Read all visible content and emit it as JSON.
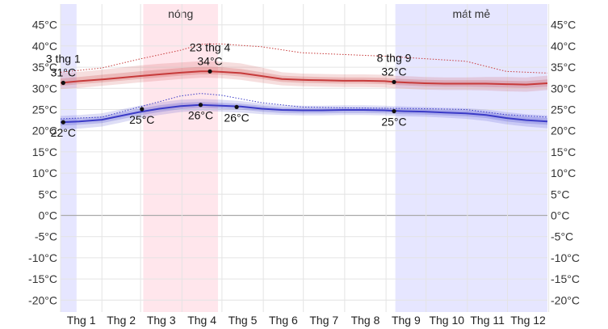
{
  "chart_data": {
    "type": "line",
    "y_unit": "°C",
    "ylim": [
      -22,
      46
    ],
    "yticks": [
      -20,
      -15,
      -10,
      -5,
      0,
      5,
      10,
      15,
      20,
      25,
      30,
      35,
      40,
      45
    ],
    "ytick_labels": [
      "-20°C",
      "-15°C",
      "-10°C",
      "-5°C",
      "0°C",
      "5°C",
      "10°C",
      "15°C",
      "20°C",
      "25°C",
      "30°C",
      "35°C",
      "40°C",
      "45°C"
    ],
    "categories": [
      "Thg 1",
      "Thg 2",
      "Thg 3",
      "Thg 4",
      "Thg 5",
      "Thg 6",
      "Thg 7",
      "Thg 8",
      "Thg 9",
      "Thg 10",
      "Thg 11",
      "Thg 12"
    ],
    "grid": true,
    "x_day_range": [
      1,
      366
    ],
    "seasons": [
      {
        "label": "",
        "start_date": "1 thg 1",
        "end_date": "12 thg 1",
        "color": "#e6e6ff"
      },
      {
        "label": "nóng",
        "start_date": "3 thg 3",
        "end_date": "27 thg 4",
        "color": "#ffe6ec"
      },
      {
        "label": "mát mẻ",
        "start_date": "8 thg 9",
        "end_date": "31 thg 12",
        "color": "#e6e6ff"
      }
    ],
    "series": [
      {
        "role": "high",
        "color": "#c73b3b",
        "x": [
          1,
          15,
          32,
          46,
          60,
          75,
          91,
          106,
          113,
          121,
          136,
          152,
          167,
          182,
          197,
          213,
          228,
          244,
          251,
          259,
          274,
          289,
          305,
          320,
          335,
          350,
          366
        ],
        "values": [
          31.3,
          31.7,
          32.1,
          32.5,
          32.9,
          33.3,
          33.7,
          34.0,
          34.0,
          33.9,
          33.6,
          32.9,
          32.2,
          32.0,
          31.9,
          31.8,
          31.8,
          31.7,
          31.5,
          31.4,
          31.2,
          31.1,
          31.1,
          31.1,
          31.0,
          30.9,
          31.2
        ],
        "p10_90": [
          [
            29.8,
            33.6
          ],
          [
            30.1,
            33.9
          ],
          [
            30.6,
            34.4
          ],
          [
            31.0,
            34.9
          ],
          [
            31.4,
            35.4
          ],
          [
            31.8,
            35.8
          ],
          [
            32.2,
            36.1
          ],
          [
            32.5,
            36.4
          ],
          [
            32.5,
            36.4
          ],
          [
            32.4,
            36.3
          ],
          [
            32.0,
            35.9
          ],
          [
            31.3,
            34.9
          ],
          [
            30.7,
            33.8
          ],
          [
            30.5,
            33.5
          ],
          [
            30.4,
            33.4
          ],
          [
            30.3,
            33.3
          ],
          [
            30.3,
            33.3
          ],
          [
            30.2,
            33.2
          ],
          [
            30.0,
            33.0
          ],
          [
            29.9,
            32.9
          ],
          [
            29.7,
            32.7
          ],
          [
            29.6,
            32.6
          ],
          [
            29.6,
            32.6
          ],
          [
            29.5,
            32.7
          ],
          [
            29.3,
            32.7
          ],
          [
            29.2,
            32.6
          ],
          [
            29.6,
            33.0
          ]
        ],
        "p25_75": [
          [
            30.6,
            32.3
          ],
          [
            31.0,
            32.7
          ],
          [
            31.4,
            33.2
          ],
          [
            31.8,
            33.6
          ],
          [
            32.2,
            34.0
          ],
          [
            32.6,
            34.4
          ],
          [
            33.0,
            34.8
          ],
          [
            33.3,
            35.1
          ],
          [
            33.3,
            35.1
          ],
          [
            33.2,
            35.0
          ],
          [
            32.8,
            34.6
          ],
          [
            32.2,
            33.8
          ],
          [
            31.5,
            33.0
          ],
          [
            31.3,
            32.8
          ],
          [
            31.2,
            32.7
          ],
          [
            31.1,
            32.6
          ],
          [
            31.1,
            32.6
          ],
          [
            31.0,
            32.5
          ],
          [
            30.8,
            32.3
          ],
          [
            30.7,
            32.2
          ],
          [
            30.5,
            32.0
          ],
          [
            30.4,
            31.9
          ],
          [
            30.4,
            31.9
          ],
          [
            30.3,
            31.9
          ],
          [
            30.2,
            31.8
          ],
          [
            30.1,
            31.7
          ],
          [
            30.4,
            32.1
          ]
        ]
      },
      {
        "role": "low",
        "color": "#3b3bc7",
        "x": [
          1,
          15,
          32,
          46,
          60,
          75,
          91,
          106,
          113,
          121,
          136,
          152,
          167,
          182,
          197,
          213,
          228,
          244,
          251,
          259,
          274,
          289,
          305,
          320,
          335,
          350,
          366
        ],
        "values": [
          22.0,
          22.2,
          22.6,
          23.5,
          24.4,
          25.2,
          25.8,
          26.1,
          26.0,
          25.9,
          25.7,
          25.2,
          24.9,
          24.8,
          24.8,
          24.9,
          24.9,
          24.8,
          24.7,
          24.6,
          24.5,
          24.3,
          24.1,
          23.7,
          23.0,
          22.5,
          22.2
        ],
        "p10_90": [
          [
            20.3,
            23.5
          ],
          [
            20.5,
            23.7
          ],
          [
            21.0,
            24.1
          ],
          [
            21.9,
            25.0
          ],
          [
            22.9,
            25.9
          ],
          [
            23.7,
            26.7
          ],
          [
            24.4,
            27.3
          ],
          [
            24.7,
            27.5
          ],
          [
            24.6,
            27.4
          ],
          [
            24.5,
            27.3
          ],
          [
            24.3,
            27.0
          ],
          [
            23.9,
            26.4
          ],
          [
            23.7,
            26.0
          ],
          [
            23.6,
            25.9
          ],
          [
            23.6,
            25.9
          ],
          [
            23.7,
            26.0
          ],
          [
            23.7,
            26.0
          ],
          [
            23.6,
            25.9
          ],
          [
            23.5,
            25.8
          ],
          [
            23.4,
            25.7
          ],
          [
            23.3,
            25.6
          ],
          [
            23.1,
            25.4
          ],
          [
            22.8,
            25.3
          ],
          [
            22.3,
            25.0
          ],
          [
            21.5,
            24.4
          ],
          [
            21.0,
            23.9
          ],
          [
            20.6,
            23.6
          ]
        ],
        "p25_75": [
          [
            21.2,
            22.8
          ],
          [
            21.4,
            23.0
          ],
          [
            21.8,
            23.4
          ],
          [
            22.7,
            24.3
          ],
          [
            23.6,
            25.2
          ],
          [
            24.4,
            26.0
          ],
          [
            25.1,
            26.6
          ],
          [
            25.4,
            26.8
          ],
          [
            25.3,
            26.7
          ],
          [
            25.2,
            26.6
          ],
          [
            25.0,
            26.4
          ],
          [
            24.5,
            25.9
          ],
          [
            24.2,
            25.5
          ],
          [
            24.1,
            25.4
          ],
          [
            24.1,
            25.4
          ],
          [
            24.2,
            25.5
          ],
          [
            24.2,
            25.5
          ],
          [
            24.1,
            25.4
          ],
          [
            24.0,
            25.3
          ],
          [
            23.9,
            25.2
          ],
          [
            23.8,
            25.1
          ],
          [
            23.6,
            24.9
          ],
          [
            23.4,
            24.8
          ],
          [
            23.0,
            24.4
          ],
          [
            22.2,
            23.8
          ],
          [
            21.7,
            23.3
          ],
          [
            21.4,
            23.0
          ]
        ]
      }
    ],
    "records": [
      {
        "name": "max",
        "color": "#c73b3b",
        "x": [
          1,
          32,
          60,
          91,
          106,
          121,
          152,
          182,
          213,
          244,
          274,
          305,
          335,
          366
        ],
        "values": [
          33.8,
          34.8,
          36.9,
          39.0,
          40.4,
          40.5,
          39.8,
          38.4,
          38.0,
          37.6,
          37.0,
          36.4,
          34.0,
          33.6
        ]
      },
      {
        "name": "min",
        "color": "#3b3bc7",
        "x": [
          1,
          32,
          60,
          91,
          106,
          121,
          152,
          182,
          213,
          244,
          274,
          305,
          335,
          366
        ],
        "values": [
          22.8,
          23.2,
          25.6,
          28.2,
          28.8,
          28.4,
          26.6,
          25.6,
          25.4,
          25.3,
          25.2,
          25.0,
          23.8,
          23.2
        ]
      }
    ],
    "annotations": [
      {
        "date": "3 thg 1",
        "value": "31°C",
        "x": 3,
        "y": 31.3,
        "label_pos": "above"
      },
      {
        "date": "23 thg 4",
        "value": "34°C",
        "x": 113,
        "y": 34.0,
        "label_pos": "above"
      },
      {
        "date": "8 thg 9",
        "value": "32°C",
        "x": 251,
        "y": 31.5,
        "label_pos": "above"
      },
      {
        "date": "",
        "value": "22°C",
        "x": 3,
        "y": 22.0,
        "label_pos": "below"
      },
      {
        "date": "",
        "value": "25°C",
        "x": 62,
        "y": 25.1,
        "label_pos": "below"
      },
      {
        "date": "",
        "value": "26°C",
        "x": 106,
        "y": 26.1,
        "label_pos": "below"
      },
      {
        "date": "",
        "value": "26°C",
        "x": 133,
        "y": 25.6,
        "label_pos": "below"
      },
      {
        "date": "",
        "value": "25°C",
        "x": 251,
        "y": 24.6,
        "label_pos": "below"
      }
    ]
  }
}
